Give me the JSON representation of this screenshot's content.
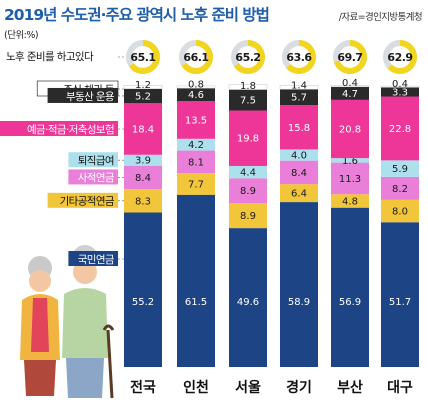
{
  "header": {
    "title": "2019년 수도권·주요 광역시 노후 준비 방법",
    "source": "/자료=경인지방통계청",
    "unit": "(단위:%)"
  },
  "chart_data": {
    "type": "bar",
    "stacked": true,
    "title": "2019년 수도권·주요 광역시 노후 준비 방법",
    "unit": "%",
    "categories": [
      "전국",
      "인천",
      "서울",
      "경기",
      "부산",
      "대구"
    ],
    "prepared_label": "노후 준비를 하고있다",
    "prepared_rate": [
      65.1,
      66.1,
      65.2,
      63.6,
      69.7,
      62.9
    ],
    "series": [
      {
        "name": "국민연금",
        "color": "#1d4484",
        "values": [
          55.2,
          61.5,
          49.6,
          58.9,
          56.9,
          51.7
        ]
      },
      {
        "name": "기타공적연금",
        "color": "#f2c63a",
        "values": [
          8.3,
          7.7,
          8.9,
          6.4,
          4.8,
          8.0
        ]
      },
      {
        "name": "사적연금",
        "color": "#e97fd8",
        "values": [
          8.4,
          8.1,
          8.9,
          8.4,
          11.3,
          8.2
        ]
      },
      {
        "name": "퇴직급여",
        "color": "#ace0ec",
        "values": [
          3.9,
          4.2,
          4.4,
          4.0,
          1.6,
          5.9
        ]
      },
      {
        "name": "예금·적금·저축성보험",
        "color": "#ee3699",
        "values": [
          18.4,
          13.5,
          19.8,
          15.8,
          20.8,
          22.8
        ]
      },
      {
        "name": "부동산 운용",
        "color": "#2a2a2a",
        "values": [
          5.2,
          4.6,
          7.5,
          5.7,
          4.7,
          3.3
        ]
      },
      {
        "name": "주식·채권 등",
        "color": "#ffffff",
        "values": [
          1.2,
          0.8,
          1.8,
          1.4,
          0.4,
          0.4
        ]
      }
    ],
    "ylim": [
      0,
      100
    ]
  }
}
